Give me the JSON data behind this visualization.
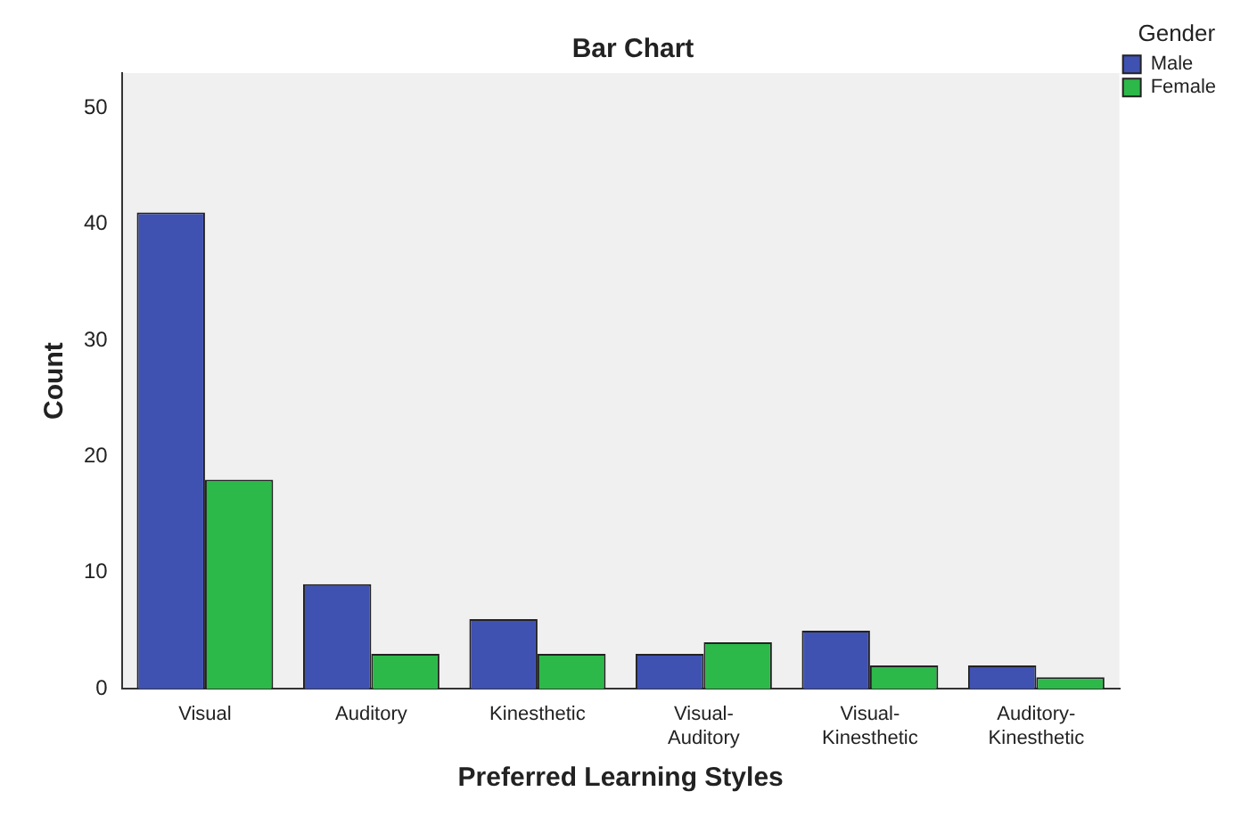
{
  "chart_data": {
    "type": "bar",
    "title": "Bar Chart",
    "xlabel": "Preferred Learning Styles",
    "ylabel": "Count",
    "legend_title": "Gender",
    "categories": [
      "Visual",
      "Auditory",
      "Kinesthetic",
      "Visual-Auditory",
      "Visual-Kinesthetic",
      "Auditory-Kinesthetic"
    ],
    "series": [
      {
        "name": "Male",
        "color": "#3f51b1",
        "values": [
          41,
          9,
          6,
          3,
          5,
          2
        ]
      },
      {
        "name": "Female",
        "color": "#2db84a",
        "values": [
          18,
          3,
          3,
          4,
          2,
          1
        ]
      }
    ],
    "ylim": [
      0,
      53
    ],
    "yticks": [
      0,
      10,
      20,
      30,
      40,
      50
    ],
    "grid": false,
    "legend": "top right"
  }
}
